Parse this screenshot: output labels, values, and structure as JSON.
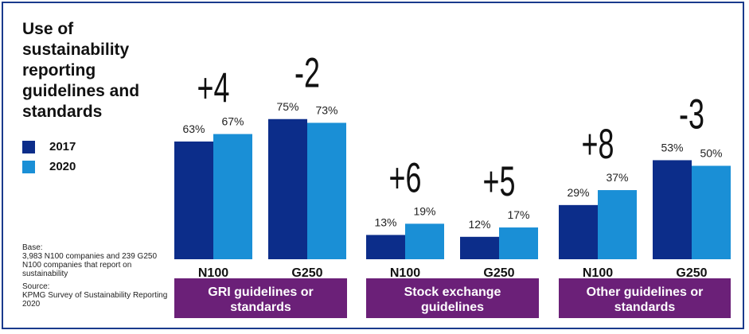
{
  "title": "Use of sustainability reporting guidelines and standards",
  "legend": [
    {
      "label": "2017",
      "color": "#0c2d8a"
    },
    {
      "label": "2020",
      "color": "#1a8fd6"
    }
  ],
  "notes": {
    "base_label": "Base:",
    "base_text": "3,983 N100 companies and 239 G250 N100 companies that report on sustainability",
    "source_label": "Source:",
    "source_text": "KPMG Survey of Sustainability Reporting 2020"
  },
  "colors": {
    "series_2017": "#0c2d8a",
    "series_2020": "#1a8fd6",
    "group_band": "#6b2078",
    "border": "#1a3a8c"
  },
  "chart_data": {
    "type": "bar",
    "series": [
      {
        "name": "2017"
      },
      {
        "name": "2020"
      }
    ],
    "groups": [
      {
        "label": "GRI guidelines or standards",
        "bars": [
          {
            "category": "N100",
            "change": "+4",
            "values": [
              63,
              67
            ],
            "labels": [
              "63%",
              "67%"
            ]
          },
          {
            "category": "G250",
            "change": "-2",
            "values": [
              75,
              73
            ],
            "labels": [
              "75%",
              "73%"
            ]
          }
        ]
      },
      {
        "label": "Stock exchange guidelines",
        "bars": [
          {
            "category": "N100",
            "change": "+6",
            "values": [
              13,
              19
            ],
            "labels": [
              "13%",
              "19%"
            ]
          },
          {
            "category": "G250",
            "change": "+5",
            "values": [
              12,
              17
            ],
            "labels": [
              "12%",
              "17%"
            ]
          }
        ]
      },
      {
        "label": "Other guidelines or standards",
        "bars": [
          {
            "category": "N100",
            "change": "+8",
            "values": [
              29,
              37
            ],
            "labels": [
              "29%",
              "37%"
            ]
          },
          {
            "category": "G250",
            "change": "-3",
            "values": [
              53,
              50
            ],
            "labels": [
              "53%",
              "50%"
            ]
          }
        ]
      }
    ],
    "unit": "%",
    "ylim": [
      0,
      100
    ],
    "grid": false,
    "legend_position": "left"
  }
}
